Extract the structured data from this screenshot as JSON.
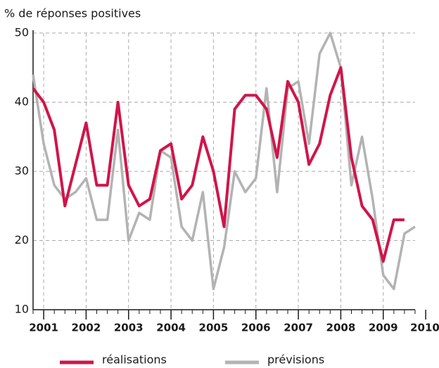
{
  "chart_data": {
    "type": "line",
    "title": "% de réponses positives",
    "x": [
      2000.75,
      2001,
      2001.25,
      2001.5,
      2001.75,
      2002,
      2002.25,
      2002.5,
      2002.75,
      2003,
      2003.25,
      2003.5,
      2003.75,
      2004,
      2004.25,
      2004.5,
      2004.75,
      2005,
      2005.25,
      2005.5,
      2005.75,
      2006,
      2006.25,
      2006.5,
      2006.75,
      2007,
      2007.25,
      2007.5,
      2007.75,
      2008,
      2008.25,
      2008.5,
      2008.75,
      2009,
      2009.25,
      2009.5,
      2009.75
    ],
    "series": [
      {
        "name": "réalisations",
        "color": "#d0154a",
        "values": [
          42,
          40,
          36,
          25,
          31,
          37,
          28,
          28,
          40,
          28,
          25,
          26,
          33,
          34,
          26,
          28,
          35,
          30,
          22,
          39,
          41,
          41,
          39,
          32,
          43,
          40,
          31,
          34,
          41,
          45,
          32,
          25,
          23,
          17,
          23,
          23,
          null
        ]
      },
      {
        "name": "prévisions",
        "color": "#b3b3b3",
        "values": [
          44,
          34,
          28,
          26,
          27,
          29,
          23,
          23,
          36,
          20,
          24,
          23,
          33,
          32,
          22,
          20,
          27,
          13,
          19,
          30,
          27,
          29,
          42,
          27,
          42,
          43,
          34,
          47,
          50,
          45,
          28,
          35,
          26,
          15,
          13,
          21,
          22
        ]
      }
    ],
    "xlim": [
      2000.75,
      2009.75
    ],
    "xticks": [
      2001,
      2002,
      2003,
      2004,
      2005,
      2006,
      2007,
      2008,
      2009,
      2010
    ],
    "ylim": [
      10,
      50
    ],
    "yticks": [
      10,
      20,
      30,
      40,
      50
    ],
    "grid": true,
    "legend": "bottom"
  }
}
